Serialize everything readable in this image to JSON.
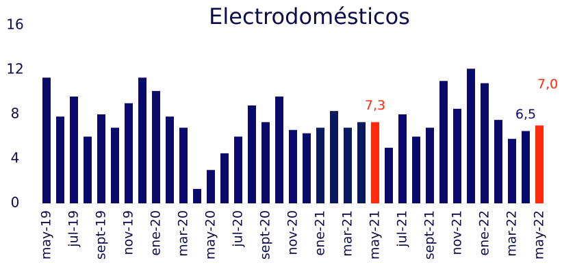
{
  "chart_data": {
    "type": "bar",
    "title": "Electrodomésticos",
    "categories": [
      "may-19",
      null,
      "jul-19",
      null,
      "sept-19",
      null,
      "nov-19",
      null,
      "ene-20",
      null,
      "mar-20",
      null,
      "may-20",
      null,
      "jul-20",
      null,
      "sept-20",
      null,
      "nov-20",
      null,
      "ene-21",
      null,
      "mar-21",
      null,
      "may-21",
      null,
      "jul-21",
      null,
      "sept-21",
      null,
      "nov-21",
      null,
      "ene-22",
      null,
      "mar-22",
      null,
      "may-22"
    ],
    "values": [
      11.3,
      7.8,
      9.6,
      6.0,
      8.0,
      6.8,
      9.0,
      11.3,
      10.1,
      7.8,
      6.8,
      1.3,
      3.0,
      4.5,
      6.0,
      8.8,
      7.3,
      9.6,
      6.6,
      6.3,
      6.8,
      8.3,
      6.8,
      7.3,
      7.3,
      5.0,
      8.0,
      6.0,
      6.8,
      11.0,
      8.5,
      12.1,
      10.8,
      7.5,
      5.8,
      6.5,
      7.0
    ],
    "value_labels": [
      null,
      null,
      null,
      null,
      null,
      null,
      null,
      null,
      null,
      null,
      null,
      null,
      null,
      null,
      null,
      null,
      null,
      null,
      null,
      null,
      null,
      null,
      null,
      null,
      "7,3",
      null,
      null,
      null,
      null,
      null,
      null,
      null,
      null,
      null,
      null,
      "6,5",
      "7,0"
    ],
    "colors": [
      "#0b0b6b",
      "#0b0b6b",
      "#0b0b6b",
      "#0b0b6b",
      "#0b0b6b",
      "#0b0b6b",
      "#0b0b6b",
      "#0b0b6b",
      "#0b0b6b",
      "#0b0b6b",
      "#0b0b6b",
      "#0b0b6b",
      "#0b0b6b",
      "#0b0b6b",
      "#0b0b6b",
      "#0b0b6b",
      "#0b0b6b",
      "#0b0b6b",
      "#0b0b6b",
      "#0b0b6b",
      "#0b1a5e",
      "#0b1a5e",
      "#0b1a5e",
      "#0b1a5e",
      "#ff2a0a",
      "#0b0b6b",
      "#0b0b6b",
      "#0b0b6b",
      "#0b0b6b",
      "#0b0b6b",
      "#0b0b6b",
      "#0b0b6b",
      "#0b0b6b",
      "#0b0b6b",
      "#0b0b6b",
      "#0b0b6b",
      "#ff2a0a"
    ],
    "ylim": [
      0,
      16
    ],
    "yticks": [
      0,
      4,
      8,
      12,
      16
    ],
    "grid": false
  }
}
